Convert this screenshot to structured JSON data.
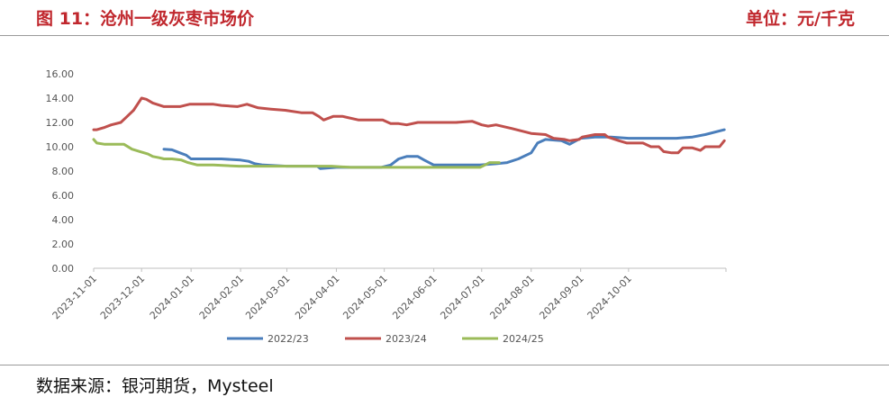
{
  "header": {
    "title": "图 11：沧州一级灰枣市场价",
    "unit": "单位：元/千克"
  },
  "footer": {
    "source": "数据来源：银河期货，Mysteel"
  },
  "chart_data": {
    "type": "line",
    "title": "",
    "xlabel": "",
    "ylabel": "",
    "ylim": [
      0,
      16
    ],
    "yticks": [
      "0.00",
      "2.00",
      "4.00",
      "6.00",
      "8.00",
      "10.00",
      "12.00",
      "14.00",
      "16.00"
    ],
    "xticks": [
      "2023-11-01",
      "2023-12-01",
      "2024-01-01",
      "2024-02-01",
      "2024-03-01",
      "2024-04-01",
      "2024-05-01",
      "2024-06-01",
      "2024-07-01",
      "2024-08-01",
      "2024-09-01",
      "2024-10-01"
    ],
    "xrange": [
      "2023-11-01",
      "2024-11-30"
    ],
    "grid": false,
    "legend": "bottom",
    "series": [
      {
        "name": "2022/23",
        "color": "#4a7ebb",
        "points": [
          [
            "2023-12-15",
            9.8
          ],
          [
            "2023-12-20",
            9.75
          ],
          [
            "2023-12-25",
            9.5
          ],
          [
            "2023-12-29",
            9.3
          ],
          [
            "2024-01-01",
            9.0
          ],
          [
            "2024-01-20",
            9.0
          ],
          [
            "2024-02-01",
            8.9
          ],
          [
            "2024-02-06",
            8.8
          ],
          [
            "2024-02-10",
            8.6
          ],
          [
            "2024-02-15",
            8.5
          ],
          [
            "2024-03-01",
            8.4
          ],
          [
            "2024-03-20",
            8.4
          ],
          [
            "2024-03-22",
            8.2
          ],
          [
            "2024-04-01",
            8.3
          ],
          [
            "2024-04-29",
            8.3
          ],
          [
            "2024-05-05",
            8.5
          ],
          [
            "2024-05-10",
            9.0
          ],
          [
            "2024-05-15",
            9.2
          ],
          [
            "2024-05-22",
            9.2
          ],
          [
            "2024-05-26",
            8.9
          ],
          [
            "2024-06-01",
            8.5
          ],
          [
            "2024-06-30",
            8.5
          ],
          [
            "2024-07-10",
            8.6
          ],
          [
            "2024-07-17",
            8.7
          ],
          [
            "2024-07-24",
            9.0
          ],
          [
            "2024-08-01",
            9.5
          ],
          [
            "2024-08-05",
            10.3
          ],
          [
            "2024-08-10",
            10.6
          ],
          [
            "2024-08-20",
            10.5
          ],
          [
            "2024-08-25",
            10.2
          ],
          [
            "2024-09-01",
            10.7
          ],
          [
            "2024-09-10",
            10.8
          ],
          [
            "2024-09-20",
            10.8
          ],
          [
            "2024-10-01",
            10.7
          ],
          [
            "2024-10-31",
            10.7
          ],
          [
            "2024-11-10",
            10.8
          ],
          [
            "2024-11-18",
            11.0
          ],
          [
            "2024-11-30",
            11.4
          ]
        ]
      },
      {
        "name": "2023/24",
        "color": "#c0504d",
        "points": [
          [
            "2023-11-01",
            11.4
          ],
          [
            "2023-11-03",
            11.4
          ],
          [
            "2023-11-08",
            11.6
          ],
          [
            "2023-11-12",
            11.8
          ],
          [
            "2023-11-18",
            12.0
          ],
          [
            "2023-11-22",
            12.5
          ],
          [
            "2023-11-26",
            13.0
          ],
          [
            "2023-11-29",
            13.6
          ],
          [
            "2023-12-01",
            14.0
          ],
          [
            "2023-12-04",
            13.9
          ],
          [
            "2023-12-08",
            13.6
          ],
          [
            "2023-12-15",
            13.3
          ],
          [
            "2023-12-25",
            13.3
          ],
          [
            "2023-12-31",
            13.5
          ],
          [
            "2024-01-15",
            13.5
          ],
          [
            "2024-01-20",
            13.4
          ],
          [
            "2024-01-30",
            13.3
          ],
          [
            "2024-02-05",
            13.5
          ],
          [
            "2024-02-12",
            13.2
          ],
          [
            "2024-02-20",
            13.1
          ],
          [
            "2024-02-29",
            13.0
          ],
          [
            "2024-03-10",
            12.8
          ],
          [
            "2024-03-17",
            12.8
          ],
          [
            "2024-03-21",
            12.5
          ],
          [
            "2024-03-24",
            12.2
          ],
          [
            "2024-03-30",
            12.5
          ],
          [
            "2024-04-05",
            12.5
          ],
          [
            "2024-04-15",
            12.2
          ],
          [
            "2024-04-30",
            12.2
          ],
          [
            "2024-05-05",
            11.9
          ],
          [
            "2024-05-10",
            11.9
          ],
          [
            "2024-05-15",
            11.8
          ],
          [
            "2024-05-22",
            12.0
          ],
          [
            "2024-06-01",
            12.0
          ],
          [
            "2024-06-15",
            12.0
          ],
          [
            "2024-06-25",
            12.1
          ],
          [
            "2024-07-01",
            11.8
          ],
          [
            "2024-07-05",
            11.7
          ],
          [
            "2024-07-10",
            11.8
          ],
          [
            "2024-07-20",
            11.5
          ],
          [
            "2024-08-01",
            11.1
          ],
          [
            "2024-08-10",
            11.0
          ],
          [
            "2024-08-15",
            10.7
          ],
          [
            "2024-08-22",
            10.6
          ],
          [
            "2024-08-25",
            10.5
          ],
          [
            "2024-08-31",
            10.6
          ],
          [
            "2024-09-02",
            10.8
          ],
          [
            "2024-09-10",
            11.0
          ],
          [
            "2024-09-16",
            11.0
          ],
          [
            "2024-09-18",
            10.8
          ],
          [
            "2024-09-25",
            10.5
          ],
          [
            "2024-09-30",
            10.3
          ],
          [
            "2024-10-10",
            10.3
          ],
          [
            "2024-10-15",
            10.0
          ],
          [
            "2024-10-20",
            10.0
          ],
          [
            "2024-10-23",
            9.6
          ],
          [
            "2024-10-28",
            9.5
          ],
          [
            "2024-11-01",
            9.5
          ],
          [
            "2024-11-04",
            9.9
          ],
          [
            "2024-11-10",
            9.9
          ],
          [
            "2024-11-15",
            9.7
          ],
          [
            "2024-11-18",
            10.0
          ],
          [
            "2024-11-27",
            10.0
          ],
          [
            "2024-11-30",
            10.5
          ]
        ]
      },
      {
        "name": "2024/25",
        "color": "#9bbb59",
        "points": [
          [
            "2023-11-01",
            10.6
          ],
          [
            "2023-11-03",
            10.3
          ],
          [
            "2023-11-08",
            10.2
          ],
          [
            "2023-11-20",
            10.2
          ],
          [
            "2023-11-25",
            9.8
          ],
          [
            "2023-11-30",
            9.6
          ],
          [
            "2023-12-05",
            9.4
          ],
          [
            "2023-12-08",
            9.2
          ],
          [
            "2023-12-12",
            9.1
          ],
          [
            "2023-12-15",
            9.0
          ],
          [
            "2023-12-20",
            9.0
          ],
          [
            "2023-12-26",
            8.9
          ],
          [
            "2023-12-30",
            8.7
          ],
          [
            "2024-01-05",
            8.5
          ],
          [
            "2024-01-15",
            8.5
          ],
          [
            "2024-01-31",
            8.4
          ],
          [
            "2024-03-29",
            8.4
          ],
          [
            "2024-04-10",
            8.3
          ],
          [
            "2024-05-30",
            8.3
          ],
          [
            "2024-06-30",
            8.3
          ],
          [
            "2024-07-03",
            8.5
          ],
          [
            "2024-07-06",
            8.7
          ],
          [
            "2024-07-12",
            8.7
          ]
        ]
      }
    ]
  }
}
